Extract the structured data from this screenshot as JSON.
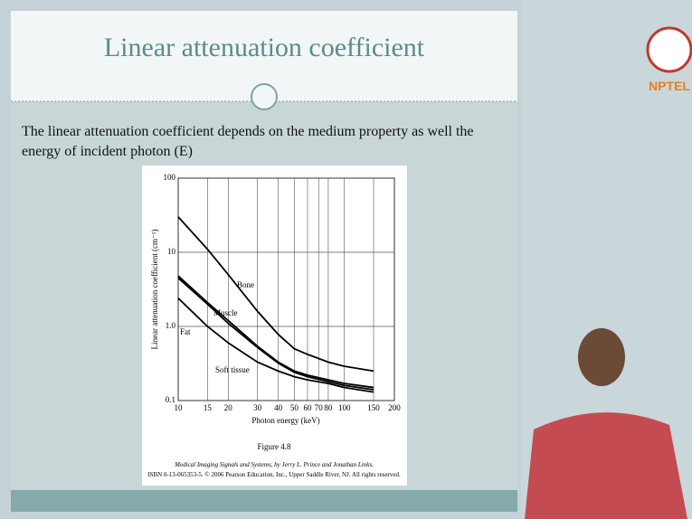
{
  "slide": {
    "title": "Linear attenuation coefficient",
    "body": [
      "The linear attenuation coefficient depends on the medium property as well the",
      "energy of incident photon (E)"
    ],
    "logo": "NPTEL",
    "figure_caption": "Figure 4.8",
    "citation": [
      "Medical Imaging Signals and Systems, by Jerry L. Prince and Jonathan Links.",
      "ISBN 0-13-065353-5. © 2006 Pearson Education, Inc., Upper Saddle River, NJ. All rights reserved."
    ]
  },
  "chart_data": {
    "type": "line",
    "xlabel": "Photon energy (keV)",
    "ylabel": "Linear attenuation coefficient (cm⁻¹)",
    "xscale": "log",
    "yscale": "log",
    "grid": true,
    "xlim": [
      10,
      200
    ],
    "ylim": [
      0.1,
      100
    ],
    "xticks": [
      10,
      15,
      20,
      30,
      40,
      50,
      60,
      70,
      80,
      100,
      150,
      200
    ],
    "yticks": [
      0.1,
      {
        "value": 1,
        "label": "1.0"
      },
      10,
      100
    ],
    "x": [
      10,
      15,
      20,
      30,
      40,
      50,
      60,
      80,
      100,
      150
    ],
    "series": [
      {
        "name": "Bone",
        "color": "#000000",
        "values": [
          30,
          11,
          5,
          1.6,
          0.78,
          0.5,
          0.42,
          0.33,
          0.29,
          0.25
        ]
      },
      {
        "name": "Muscle",
        "color": "#000000",
        "values": [
          4.8,
          2.1,
          1.2,
          0.54,
          0.33,
          0.25,
          0.22,
          0.19,
          0.17,
          0.15
        ]
      },
      {
        "name": "Fat",
        "color": "#000000",
        "values": [
          2.4,
          1.0,
          0.6,
          0.33,
          0.25,
          0.21,
          0.19,
          0.17,
          0.15,
          0.13
        ]
      },
      {
        "name": "Soft tissue",
        "color": "#000000",
        "values": [
          4.5,
          2.0,
          1.1,
          0.52,
          0.32,
          0.24,
          0.21,
          0.18,
          0.16,
          0.14
        ]
      }
    ]
  }
}
